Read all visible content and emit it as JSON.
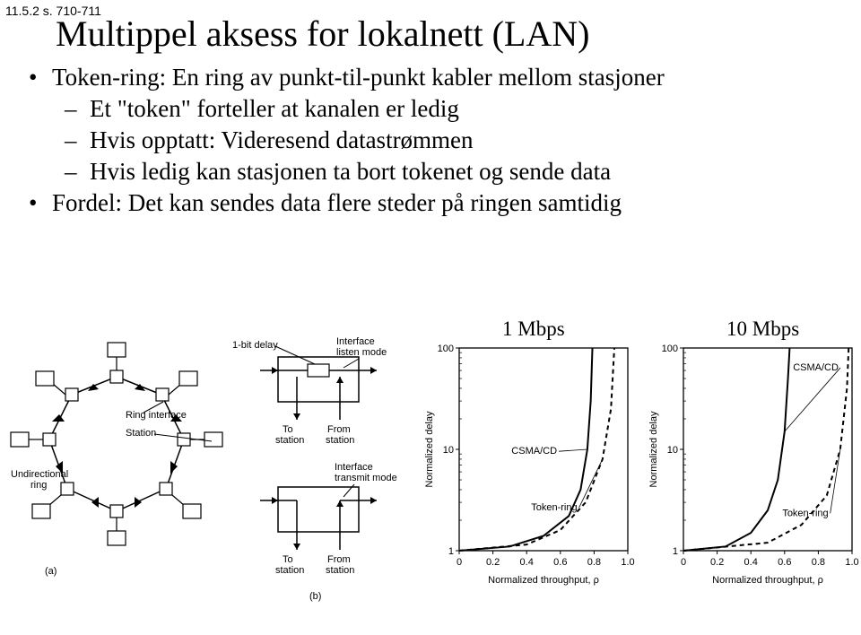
{
  "ref": "11.5.2 s. 710-711",
  "title": "Multippel aksess for lokalnett (LAN)",
  "bullets": {
    "b1": "Token-ring: En ring av punkt-til-punkt kabler mellom stasjoner",
    "s1": "Et \"token\" forteller at kanalen er ledig",
    "s2": "Hvis opptatt: Videresend datastrømmen",
    "s3": "Hvis ledig kan stasjonen ta bort tokenet og sende data",
    "b2": "Fordel: Det kan sendes data flere steder på ringen samtidig"
  },
  "figA": {
    "ring_interface": "Ring interface",
    "station": "Station",
    "undirectional_ring": "Undirectional\nring",
    "caption": "(a)"
  },
  "figB": {
    "bit_delay": "1-bit delay",
    "listen_mode": "Interface\nlisten mode",
    "to_station": "To\nstation",
    "from_station": "From\nstation",
    "transmit_mode": "Interface\ntransmit mode",
    "caption": "(b)"
  },
  "chart1": {
    "title": "1 Mbps",
    "ylabel": "Normalized delay",
    "xlabel": "Normalized throughput, ρ",
    "ymax": 100,
    "ymid": 10,
    "ymin": 1,
    "csma_label": "CSMA/CD",
    "token_label": "Token-ring",
    "xticks": [
      "0",
      "0.2",
      "0.4",
      "0.6",
      "0.8",
      "1.0"
    ],
    "csma_curve": [
      [
        0,
        1
      ],
      [
        0.3,
        1.1
      ],
      [
        0.5,
        1.4
      ],
      [
        0.65,
        2.2
      ],
      [
        0.72,
        4
      ],
      [
        0.76,
        10
      ],
      [
        0.78,
        30
      ],
      [
        0.79,
        100
      ]
    ],
    "token_curve": [
      [
        0,
        1
      ],
      [
        0.4,
        1.15
      ],
      [
        0.6,
        1.6
      ],
      [
        0.75,
        3
      ],
      [
        0.85,
        8
      ],
      [
        0.9,
        25
      ],
      [
        0.92,
        100
      ]
    ],
    "line_color": "#000000",
    "dash": "5,4",
    "bg": "#ffffff"
  },
  "chart2": {
    "title": "10 Mbps",
    "ylabel": "Normalized delay",
    "xlabel": "Normalized throughput, ρ",
    "ymax": 100,
    "ymid": 10,
    "ymin": 1,
    "csma_label": "CSMA/CD",
    "token_label": "Token-ring",
    "xticks": [
      "0",
      "0.2",
      "0.4",
      "0.6",
      "0.8",
      "1.0"
    ],
    "csma_curve": [
      [
        0,
        1
      ],
      [
        0.25,
        1.1
      ],
      [
        0.4,
        1.5
      ],
      [
        0.5,
        2.5
      ],
      [
        0.56,
        5
      ],
      [
        0.6,
        15
      ],
      [
        0.62,
        50
      ],
      [
        0.63,
        100
      ]
    ],
    "token_curve": [
      [
        0,
        1
      ],
      [
        0.5,
        1.2
      ],
      [
        0.7,
        1.8
      ],
      [
        0.85,
        3.5
      ],
      [
        0.93,
        10
      ],
      [
        0.97,
        40
      ],
      [
        0.98,
        100
      ]
    ],
    "line_color": "#000000",
    "dash": "5,4",
    "bg": "#ffffff"
  }
}
